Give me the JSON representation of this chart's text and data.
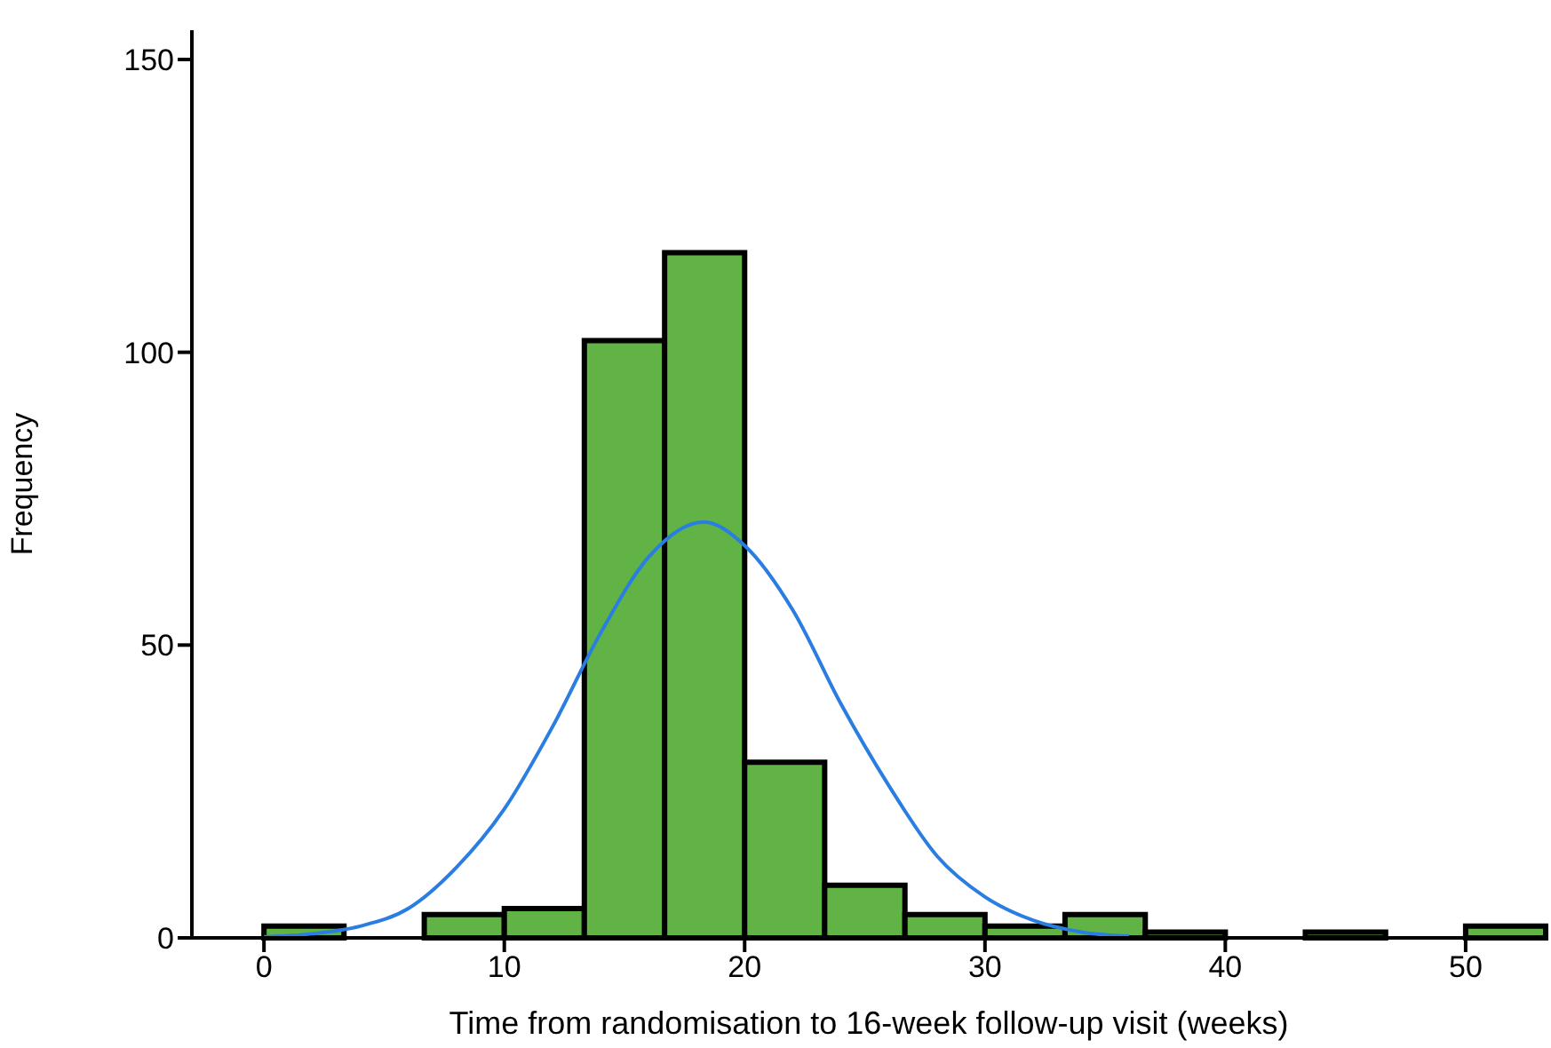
{
  "chart_data": {
    "type": "histogram",
    "xlabel": "Time from randomisation to 16-week follow-up visit (weeks)",
    "ylabel": "Frequency",
    "bins": [
      0,
      3.33,
      6.67,
      10,
      13.33,
      16.67,
      20,
      23.33,
      26.67,
      30,
      33.33,
      36.67,
      40,
      43.33,
      46.67,
      50,
      53.33
    ],
    "values": [
      2,
      0,
      4,
      5,
      102,
      117,
      30,
      9,
      4,
      2,
      4,
      1,
      0,
      1,
      0,
      2
    ],
    "color": "#62b345",
    "xlim": [
      -3,
      53.33
    ],
    "xticks": [
      0,
      10,
      20,
      30,
      40,
      50
    ],
    "ylim": [
      0,
      155
    ],
    "yticks": [
      0,
      50,
      100,
      150
    ],
    "series": [
      {
        "type": "line",
        "color": "#2a7de1",
        "x": [
          0,
          2,
          4,
          6,
          8,
          10,
          12,
          14,
          16,
          18.3,
          20,
          22,
          24,
          26,
          28,
          30,
          32,
          34,
          36
        ],
        "values": [
          0.2,
          0.7,
          2,
          5,
          12,
          22,
          36,
          52,
          65,
          71,
          67,
          56,
          40,
          26,
          14,
          7,
          3,
          1,
          0.3
        ]
      }
    ]
  }
}
